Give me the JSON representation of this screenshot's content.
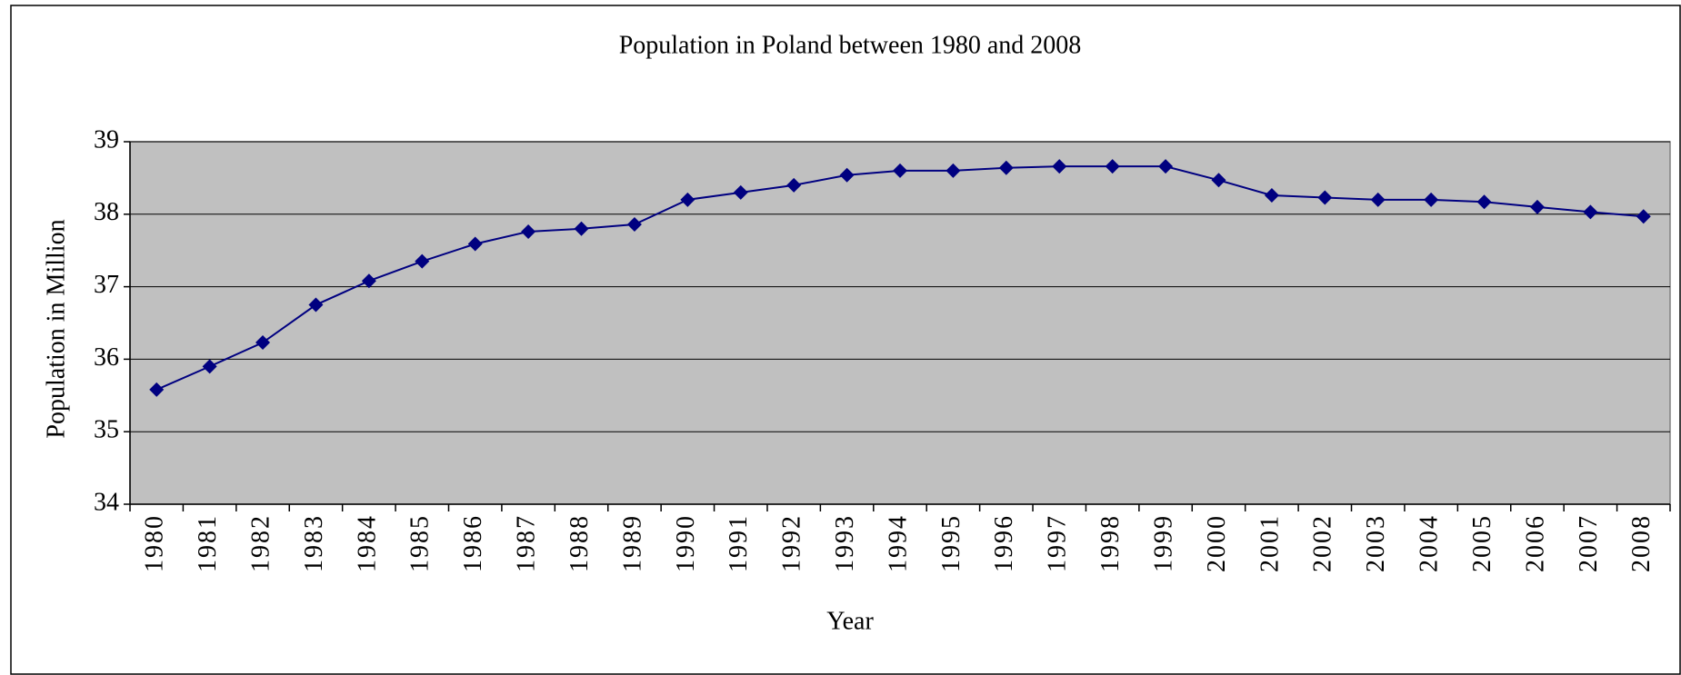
{
  "chart_data": {
    "type": "line",
    "title": "Population in Poland between 1980 and 2008",
    "x_label": "Year",
    "y_label": "Population in Million",
    "categories": [
      "1980",
      "1981",
      "1982",
      "1983",
      "1984",
      "1985",
      "1986",
      "1987",
      "1988",
      "1989",
      "1990",
      "1991",
      "1992",
      "1993",
      "1994",
      "1995",
      "1996",
      "1997",
      "1998",
      "1999",
      "2000",
      "2001",
      "2002",
      "2003",
      "2004",
      "2005",
      "2006",
      "2007",
      "2008"
    ],
    "series": [
      {
        "name": "Population",
        "color": "#000080",
        "values": [
          35.58,
          35.9,
          36.23,
          36.75,
          37.08,
          37.35,
          37.59,
          37.76,
          37.8,
          37.86,
          38.2,
          38.3,
          38.4,
          38.54,
          38.6,
          38.6,
          38.64,
          38.66,
          38.66,
          38.66,
          38.47,
          38.26,
          38.23,
          38.2,
          38.2,
          38.17,
          38.1,
          38.03,
          37.97
        ]
      }
    ],
    "ylim": [
      34,
      39
    ],
    "yticks": [
      34,
      35,
      36,
      37,
      38,
      39
    ],
    "grid": true,
    "plot_background": "#c0c0c0"
  }
}
